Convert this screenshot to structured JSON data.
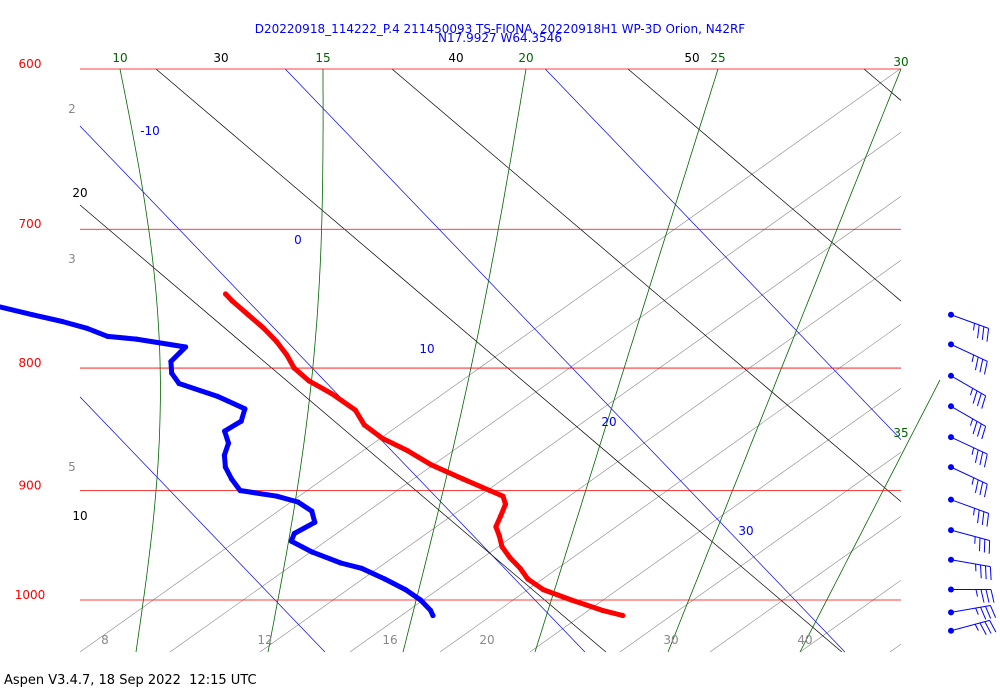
{
  "chart_data": {
    "type": "line",
    "title_line1": "D20220918_114222_P.4 211450093 TS-FIONA, 20220918H1 WP-3D Orion, N42RF",
    "title_line2": "N17.9927 W64.3546",
    "pressure_labels": [
      "600",
      "700",
      "800",
      "900",
      "1000"
    ],
    "pressure_levels": [
      600,
      700,
      800,
      900,
      1000
    ],
    "mixing_ratio_labels": [
      "2",
      "3",
      "5",
      "8",
      "12",
      "16",
      "20",
      "30",
      "40"
    ],
    "isotherm_labels": [
      "-10",
      "0",
      "10",
      "20",
      "30"
    ],
    "dry_adiabat_labels": [
      "10",
      "20",
      "30",
      "40",
      "50"
    ],
    "moist_adiabat_labels": [
      "10",
      "15",
      "20",
      "25",
      "30",
      "35"
    ],
    "series": [
      {
        "color": "#ff0000",
        "values": [
          [
            1015,
            22.8
          ],
          [
            1010,
            22.2
          ],
          [
            1000,
            21.4
          ],
          [
            990,
            20.7
          ],
          [
            980,
            20.5
          ],
          [
            970,
            20.6
          ],
          [
            960,
            20.6
          ],
          [
            950,
            20.7
          ],
          [
            940,
            21.0
          ],
          [
            932,
            21.2
          ],
          [
            922,
            21.8
          ],
          [
            912,
            22.4
          ],
          [
            905,
            22.6
          ],
          [
            900,
            22.3
          ],
          [
            890,
            21.7
          ],
          [
            878,
            21.0
          ],
          [
            866,
            20.6
          ],
          [
            856,
            20.1
          ],
          [
            845,
            19.9
          ],
          [
            833,
            20.1
          ],
          [
            820,
            19.8
          ],
          [
            810,
            19.4
          ],
          [
            800,
            19.3
          ],
          [
            790,
            19.5
          ],
          [
            780,
            19.6
          ],
          [
            770,
            19.6
          ],
          [
            760,
            19.5
          ],
          [
            750,
            19.4
          ],
          [
            745,
            19.4
          ]
        ]
      },
      {
        "color": "#0000ff",
        "values": [
          [
            1015,
            15.5
          ],
          [
            1010,
            15.6
          ],
          [
            1000,
            15.6
          ],
          [
            990,
            15.4
          ],
          [
            980,
            15.0
          ],
          [
            970,
            14.5
          ],
          [
            965,
            13.9
          ],
          [
            955,
            13.2
          ],
          [
            945,
            12.8
          ],
          [
            938,
            13.2
          ],
          [
            928,
            14.4
          ],
          [
            918,
            14.7
          ],
          [
            910,
            14.5
          ],
          [
            905,
            13.9
          ],
          [
            900,
            12.7
          ],
          [
            890,
            12.8
          ],
          [
            880,
            13.0
          ],
          [
            870,
            13.4
          ],
          [
            860,
            14.0
          ],
          [
            850,
            14.3
          ],
          [
            842,
            15.3
          ],
          [
            832,
            15.9
          ],
          [
            822,
            15.3
          ],
          [
            812,
            14.3
          ],
          [
            804,
            14.4
          ],
          [
            795,
            14.8
          ],
          [
            788,
            15.5
          ],
          [
            784,
            15.9
          ],
          [
            778,
            14.3
          ],
          [
            776,
            13.3
          ],
          [
            770,
            12.8
          ],
          [
            765,
            12.1
          ],
          [
            760,
            11.2
          ],
          [
            754,
            10.2
          ]
        ]
      }
    ],
    "wind_barbs": [
      {
        "pressure": 760,
        "dir": 110,
        "kt": 35
      },
      {
        "pressure": 782,
        "dir": 115,
        "kt": 35
      },
      {
        "pressure": 806,
        "dir": 120,
        "kt": 35
      },
      {
        "pressure": 830,
        "dir": 120,
        "kt": 35
      },
      {
        "pressure": 855,
        "dir": 115,
        "kt": 35
      },
      {
        "pressure": 880,
        "dir": 115,
        "kt": 35
      },
      {
        "pressure": 908,
        "dir": 110,
        "kt": 35
      },
      {
        "pressure": 935,
        "dir": 105,
        "kt": 35
      },
      {
        "pressure": 962,
        "dir": 100,
        "kt": 35
      },
      {
        "pressure": 990,
        "dir": 90,
        "kt": 35
      },
      {
        "pressure": 1012,
        "dir": 80,
        "kt": 35
      },
      {
        "pressure": 1030,
        "dir": 75,
        "kt": 35
      }
    ]
  },
  "footer": {
    "text": "Aspen V3.4.7, 18 Sep 2022  12:15 UTC"
  }
}
